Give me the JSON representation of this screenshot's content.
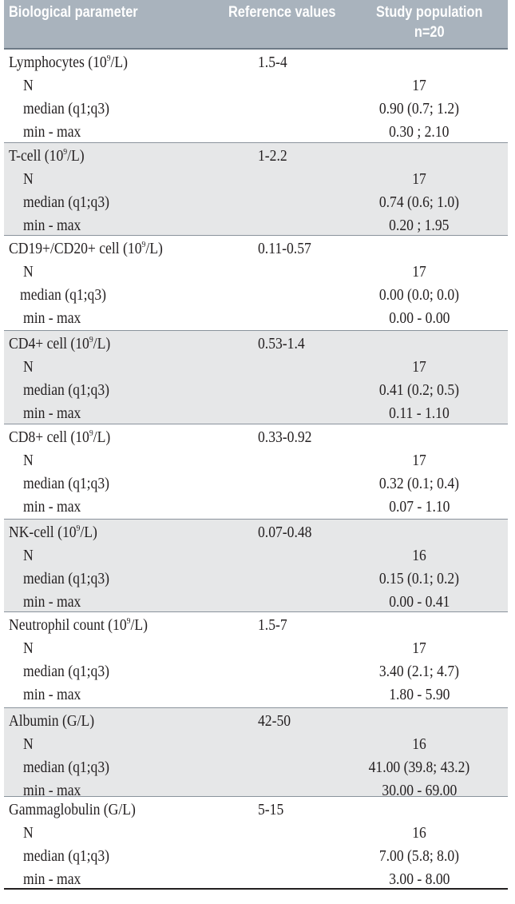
{
  "header": {
    "col1": "Biological parameter",
    "col2": "Reference values",
    "col3_line1": "Study population",
    "col3_line2": "n=20"
  },
  "rows": [
    {
      "param_pre": "Lymphocytes (10",
      "param_sup": "9",
      "param_post": "/L)",
      "ref": "1.5-4",
      "n_label": "N",
      "n": "17",
      "median_label": "median (q1;q3)",
      "median": "0.90 (0.7; 1.2)",
      "range_label": "min - max",
      "range": "0.30 ; 2.10"
    },
    {
      "param_pre": "T-cell (10",
      "param_sup": "9",
      "param_post": "/L)",
      "ref": "1-2.2",
      "n_label": "N",
      "n": "17",
      "median_label": "median (q1;q3)",
      "median": "0.74 (0.6; 1.0)",
      "range_label": "min - max",
      "range": "0.20 ; 1.95"
    },
    {
      "param_pre": "CD19+/CD20+ cell (10",
      "param_sup": "9",
      "param_post": "/L)",
      "ref": "0.11-0.57",
      "n_label": "N",
      "n": "17",
      "median_label": "median (q1;q3)",
      "median": "0.00 (0.0; 0.0)",
      "range_label": "min - max",
      "range": "0.00 - 0.00"
    },
    {
      "param_pre": "CD4+ cell (10",
      "param_sup": "9",
      "param_post": "/L)",
      "ref": "0.53-1.4",
      "n_label": "N",
      "n": "17",
      "median_label": "median (q1;q3)",
      "median": "0.41 (0.2; 0.5)",
      "range_label": "min - max",
      "range": "0.11 - 1.10"
    },
    {
      "param_pre": "CD8+ cell (10",
      "param_sup": "9",
      "param_post": "/L)",
      "ref": "0.33-0.92",
      "n_label": "N",
      "n": "17",
      "median_label": "median (q1;q3)",
      "median": "0.32 (0.1; 0.4)",
      "range_label": "min - max",
      "range": "0.07 - 1.10"
    },
    {
      "param_pre": "NK-cell (10",
      "param_sup": "9",
      "param_post": "/L)",
      "ref": "0.07-0.48",
      "n_label": "N",
      "n": "16",
      "median_label": "median (q1;q3)",
      "median": "0.15 (0.1; 0.2)",
      "range_label": "min - max",
      "range": "0.00 - 0.41"
    },
    {
      "param_pre": "Neutrophil count (10",
      "param_sup": "9",
      "param_post": "/L)",
      "ref": "1.5-7",
      "n_label": "N",
      "n": "17",
      "median_label": "median (q1;q3)",
      "median": "3.40 (2.1; 4.7)",
      "range_label": "min - max",
      "range": "1.80 - 5.90"
    },
    {
      "param_pre": "Albumin (G/L)",
      "param_sup": "",
      "param_post": "",
      "ref": "42-50",
      "n_label": "N",
      "n": "16",
      "median_label": "median (q1;q3)",
      "median": "41.00 (39.8; 43.2)",
      "range_label": "min - max",
      "range": "30.00 - 69.00"
    },
    {
      "param_pre": "Gammaglobulin (G/L)",
      "param_sup": "",
      "param_post": "",
      "ref": "5-15",
      "n_label": "N",
      "n": "16",
      "median_label": "median (q1;q3)",
      "median": "7.00 (5.8; 8.0)",
      "range_label": "min - max",
      "range": "3.00 - 8.00"
    }
  ],
  "colors": {
    "header_bg": "#a9b3bd",
    "header_text": "#ffffff",
    "shade_bg": "#e6e7e8",
    "text": "#231f20"
  }
}
